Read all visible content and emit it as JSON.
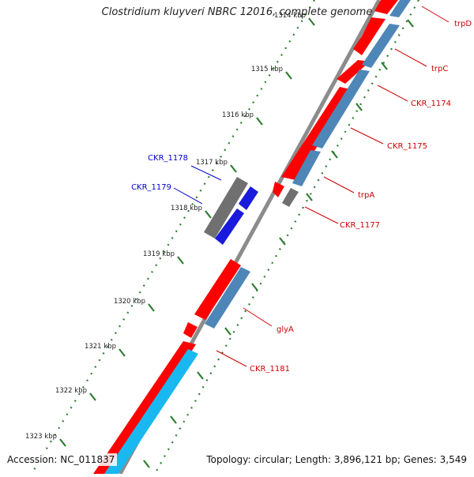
{
  "title": "Clostridium kluyveri NBRC 12016, complete genome",
  "footer": {
    "accession": "Accession: NC_011837",
    "summary": "Topology: circular; Length: 3,896,121 bp; Genes: 3,549"
  },
  "colors": {
    "forward_cds": "#ff0000",
    "forward_track_secondary": "#4f86b8",
    "forward_track_bright": "#1ab8f0",
    "reverse_cds": "#1a1adc",
    "reverse_gray": "#707070",
    "backbone": "#8c8c8c",
    "tick": "#2e7d2e",
    "label_forward": "#cc0000",
    "label_reverse": "#0000cc"
  },
  "scale": {
    "unit": "kbp",
    "labels": [
      "1314 kbp",
      "1315 kbp",
      "1316 kbp",
      "1317 kbp",
      "1318 kbp",
      "1319 kbp",
      "1320 kbp",
      "1321 kbp",
      "1322 kbp",
      "1323 kbp"
    ]
  },
  "genes_forward": [
    "trpD",
    "trpC",
    "CKR_1174",
    "CKR_1175",
    "trpA",
    "CKR_1177",
    "glyA",
    "CKR_1181"
  ],
  "genes_reverse": [
    "CKR_1178",
    "CKR_1179"
  ]
}
